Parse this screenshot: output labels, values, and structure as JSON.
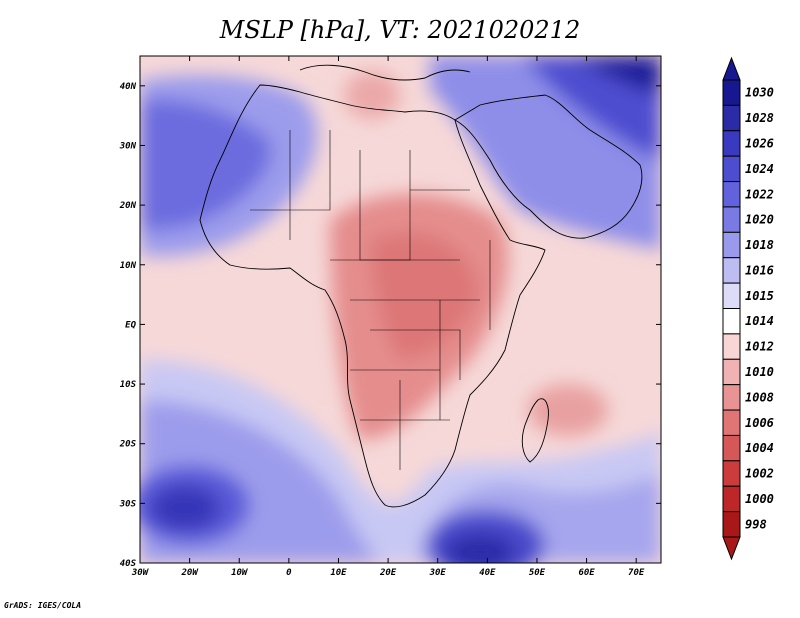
{
  "title": "MSLP [hPa], VT: 2021020212",
  "credit": "GrADS: IGES/COLA",
  "map": {
    "projection": "lat-lon",
    "lon_range": [
      -30,
      75
    ],
    "lat_range": [
      -40,
      45
    ],
    "lon_ticks": [
      {
        "value": -30,
        "label": "30W"
      },
      {
        "value": -20,
        "label": "20W"
      },
      {
        "value": -10,
        "label": "10W"
      },
      {
        "value": 0,
        "label": "0"
      },
      {
        "value": 10,
        "label": "10E"
      },
      {
        "value": 20,
        "label": "20E"
      },
      {
        "value": 30,
        "label": "30E"
      },
      {
        "value": 40,
        "label": "40E"
      },
      {
        "value": 50,
        "label": "50E"
      },
      {
        "value": 60,
        "label": "60E"
      },
      {
        "value": 70,
        "label": "70E"
      }
    ],
    "lat_ticks": [
      {
        "value": 40,
        "label": "40N"
      },
      {
        "value": 30,
        "label": "30N"
      },
      {
        "value": 20,
        "label": "20N"
      },
      {
        "value": 10,
        "label": "10N"
      },
      {
        "value": 0,
        "label": "EQ"
      },
      {
        "value": -10,
        "label": "10S"
      },
      {
        "value": -20,
        "label": "20S"
      },
      {
        "value": -30,
        "label": "30S"
      },
      {
        "value": -40,
        "label": "40S"
      }
    ],
    "fields": [
      {
        "name": "ridge-north-atlantic",
        "lon": -18,
        "lat": 34,
        "value": 1024
      },
      {
        "name": "ridge-arabia-iran",
        "lon": 60,
        "lat": 38,
        "value": 1028
      },
      {
        "name": "high-south-atlantic",
        "lon": -17,
        "lat": -31,
        "value": 1028
      },
      {
        "name": "high-south-indian",
        "lon": 40,
        "lat": -36,
        "value": 1026
      },
      {
        "name": "trough-central-africa",
        "lon": 25,
        "lat": 5,
        "value": 1007
      },
      {
        "name": "trough-southern-africa",
        "lon": 22,
        "lat": -18,
        "value": 1007
      },
      {
        "name": "low-madagascar",
        "lon": 55,
        "lat": -14,
        "value": 1007
      },
      {
        "name": "low-mediterranean",
        "lon": 17,
        "lat": 38,
        "value": 1010
      }
    ]
  },
  "colorbar": {
    "levels": [
      "1030",
      "1028",
      "1026",
      "1024",
      "1022",
      "1020",
      "1018",
      "1016",
      "1015",
      "1014",
      "1012",
      "1010",
      "1008",
      "1006",
      "1004",
      "1002",
      "1000",
      "998"
    ],
    "colors": [
      "#17178f",
      "#2b2ba8",
      "#3a3ac0",
      "#4d4dd0",
      "#6262dc",
      "#7a7ae4",
      "#9a9aec",
      "#bdbdf3",
      "#dcdcf8",
      "#ffffff",
      "#f8d6d6",
      "#f0b2b2",
      "#e89494",
      "#e07575",
      "#d65757",
      "#cb3c3c",
      "#bd2727",
      "#a81818"
    ]
  }
}
